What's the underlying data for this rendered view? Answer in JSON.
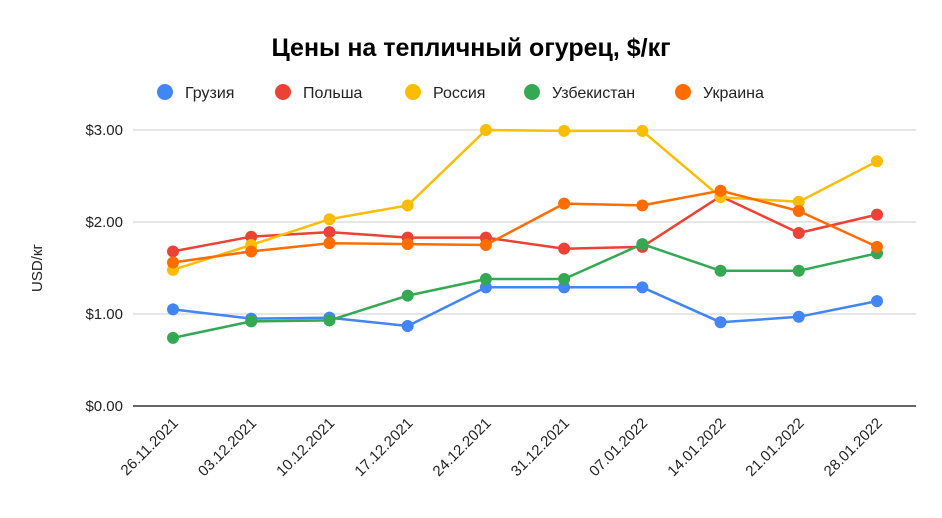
{
  "chart_data": {
    "type": "line",
    "title": "Цены на тепличный огурец, $/кг",
    "xlabel": "",
    "ylabel": "USD/кг",
    "ylim": [
      0,
      3
    ],
    "yticks": [
      0,
      1,
      2,
      3
    ],
    "ytick_labels": [
      "$0.00",
      "$1.00",
      "$2.00",
      "$3.00"
    ],
    "grid": true,
    "legend_position": "top",
    "x": [
      "26.11.2021",
      "03.12.2021",
      "10.12.2021",
      "17.12.2021",
      "24.12.2021",
      "31.12.2021",
      "07.01.2022",
      "14.01.2022",
      "21.01.2022",
      "28.01.2022"
    ],
    "series": [
      {
        "name": "Грузия",
        "color": "#4285F4",
        "values": [
          1.05,
          0.95,
          0.96,
          0.87,
          1.29,
          1.29,
          1.29,
          0.91,
          0.97,
          1.14
        ]
      },
      {
        "name": "Польша",
        "color": "#EA4335",
        "values": [
          1.68,
          1.84,
          1.89,
          1.83,
          1.83,
          1.71,
          1.73,
          2.28,
          1.88,
          2.08
        ]
      },
      {
        "name": "Россия",
        "color": "#FBBC04",
        "values": [
          1.48,
          1.75,
          2.03,
          2.18,
          3.0,
          2.99,
          2.99,
          2.27,
          2.22,
          2.66
        ]
      },
      {
        "name": "Узбекистан",
        "color": "#34A853",
        "values": [
          0.74,
          0.92,
          0.93,
          1.2,
          1.38,
          1.38,
          1.76,
          1.47,
          1.47,
          1.66
        ]
      },
      {
        "name": "Украина",
        "color": "#FF6D01",
        "values": [
          1.56,
          1.68,
          1.77,
          1.76,
          1.75,
          2.2,
          2.18,
          2.34,
          2.12,
          1.73
        ]
      }
    ]
  }
}
